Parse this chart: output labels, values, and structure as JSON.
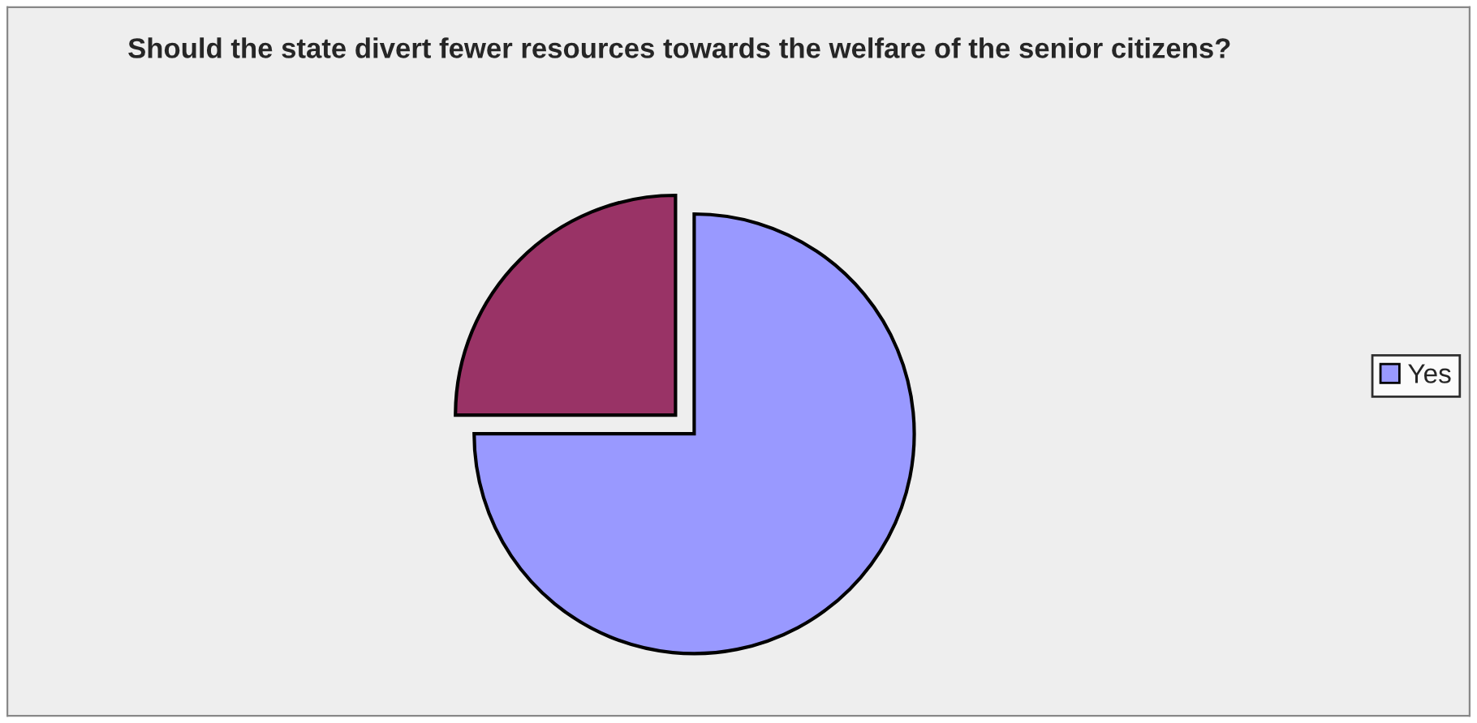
{
  "chart_data": {
    "type": "pie",
    "title": "Should the state divert fewer resources towards the welfare of the senior citizens?",
    "categories": [
      "Yes",
      null
    ],
    "values": [
      75,
      25
    ],
    "colors": [
      "#9999ff",
      "#993366"
    ],
    "legend": "right"
  }
}
